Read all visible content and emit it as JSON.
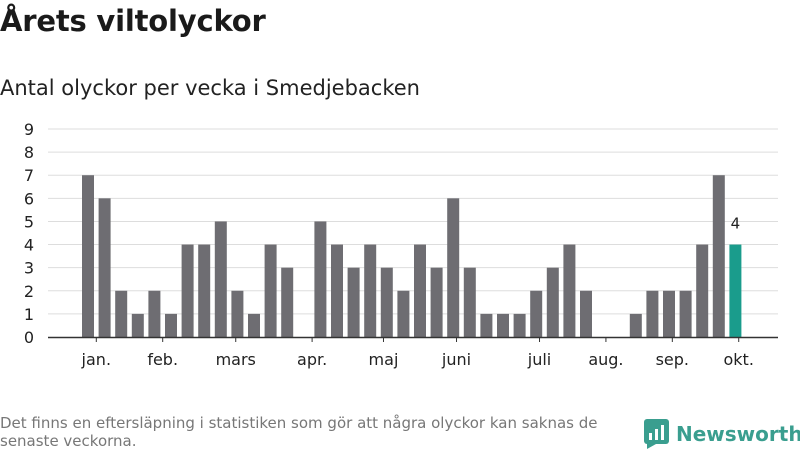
{
  "header": {
    "title": "Årets viltolyckor",
    "subtitle": "Antal olyckor per vecka i Smedjebacken"
  },
  "footer": {
    "note": "Det finns en eftersläpning i statistiken som gör att några olyckor kan saknas de senaste veckorna.",
    "brand": "Newsworthy",
    "logo_icon": "bar-chart-logo-icon"
  },
  "colors": {
    "bar": "#6e6d72",
    "highlight": "#1a9c8c",
    "grid": "#dddddd",
    "brand": "#3a9e8f"
  },
  "chart_data": {
    "type": "bar",
    "title": "Årets viltolyckor",
    "subtitle": "Antal olyckor per vecka i Smedjebacken",
    "xlabel": "",
    "ylabel": "",
    "ylim": [
      0,
      9
    ],
    "yticks": [
      0,
      1,
      2,
      3,
      4,
      5,
      6,
      7,
      8,
      9
    ],
    "grid": true,
    "weeks": [
      1,
      2,
      3,
      4,
      5,
      6,
      7,
      8,
      9,
      10,
      11,
      12,
      13,
      14,
      15,
      16,
      17,
      18,
      19,
      20,
      21,
      22,
      23,
      24,
      25,
      26,
      27,
      28,
      29,
      30,
      31,
      32,
      33,
      34,
      35,
      36,
      37,
      38,
      39,
      40
    ],
    "values": [
      7,
      6,
      2,
      1,
      2,
      1,
      4,
      4,
      5,
      2,
      1,
      4,
      3,
      0,
      5,
      4,
      3,
      4,
      3,
      2,
      4,
      3,
      6,
      3,
      1,
      1,
      1,
      2,
      3,
      4,
      2,
      0,
      0,
      1,
      2,
      2,
      2,
      4,
      7,
      4
    ],
    "highlight_index": 39,
    "highlight_label": "4",
    "month_labels": [
      {
        "label": "jan.",
        "week": 1.5
      },
      {
        "label": "feb.",
        "week": 5.5
      },
      {
        "label": "mars",
        "week": 9.9
      },
      {
        "label": "apr.",
        "week": 14.5
      },
      {
        "label": "maj",
        "week": 18.8
      },
      {
        "label": "juni",
        "week": 23.2
      },
      {
        "label": "juli",
        "week": 28.2
      },
      {
        "label": "aug.",
        "week": 32.2
      },
      {
        "label": "sep.",
        "week": 36.2
      },
      {
        "label": "okt.",
        "week": 40.2
      }
    ]
  }
}
